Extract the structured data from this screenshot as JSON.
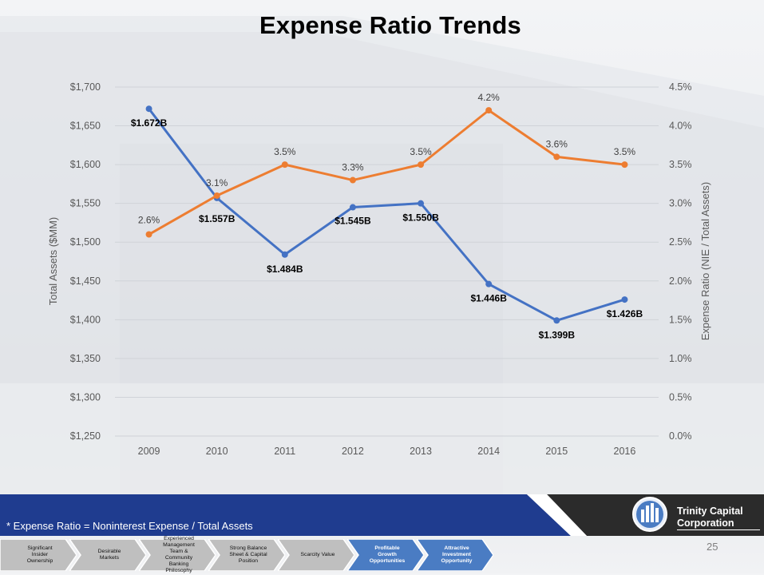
{
  "title": "Expense Ratio Trends",
  "chart_data": {
    "type": "line",
    "categories": [
      "2009",
      "2010",
      "2011",
      "2012",
      "2013",
      "2014",
      "2015",
      "2016"
    ],
    "y_left": {
      "label": "Total Assets ($MM)",
      "min": 1250,
      "max": 1700,
      "step": 50,
      "ticks": [
        "$1,250",
        "$1,300",
        "$1,350",
        "$1,400",
        "$1,450",
        "$1,500",
        "$1,550",
        "$1,600",
        "$1,650",
        "$1,700"
      ]
    },
    "y_right": {
      "label": "Expense Ratio (NIE / Total Assets)",
      "min": 0,
      "max": 4.5,
      "step": 0.5,
      "ticks": [
        "0.0%",
        "0.5%",
        "1.0%",
        "1.5%",
        "2.0%",
        "2.5%",
        "3.0%",
        "3.5%",
        "4.0%",
        "4.5%"
      ]
    },
    "series": [
      {
        "name": "Total Assets",
        "axis": "left",
        "color": "#4472c4",
        "values": [
          1672,
          1557,
          1484,
          1545,
          1550,
          1446,
          1399,
          1426
        ],
        "labels": [
          "$1.672B",
          "$1.557B",
          "$1.484B",
          "$1.545B",
          "$1.550B",
          "$1.446B",
          "$1.399B",
          "$1.426B"
        ]
      },
      {
        "name": "Expense Ratio",
        "axis": "right",
        "color": "#ed7d31",
        "values": [
          2.6,
          3.1,
          3.5,
          3.3,
          3.5,
          4.2,
          3.6,
          3.5
        ],
        "labels": [
          "2.6%",
          "3.1%",
          "3.5%",
          "3.3%",
          "3.5%",
          "4.2%",
          "3.6%",
          "3.5%"
        ]
      }
    ],
    "grid": true
  },
  "footnote": "* Expense Ratio = Noninterest Expense / Total Assets",
  "brand": {
    "line1": "Trinity Capital",
    "line2": "Corporation"
  },
  "page_number": "25",
  "nav_steps": [
    {
      "label": "Significant Insider Ownership",
      "active": false
    },
    {
      "label": "Desirable Markets",
      "active": false
    },
    {
      "label": "Experienced Management Team & Community Banking Philosophy",
      "active": false
    },
    {
      "label": "Strong Balance Sheet & Capital Position",
      "active": false
    },
    {
      "label": "Scarcity Value",
      "active": false
    },
    {
      "label": "Profitable Growth Opportunities",
      "active": true
    },
    {
      "label": "Attractive Investment Opportunity",
      "active": true
    }
  ],
  "colors": {
    "navy": "#1f3c8f",
    "step_grey": "#bfbfbf",
    "step_blue": "#4a7cc3"
  }
}
